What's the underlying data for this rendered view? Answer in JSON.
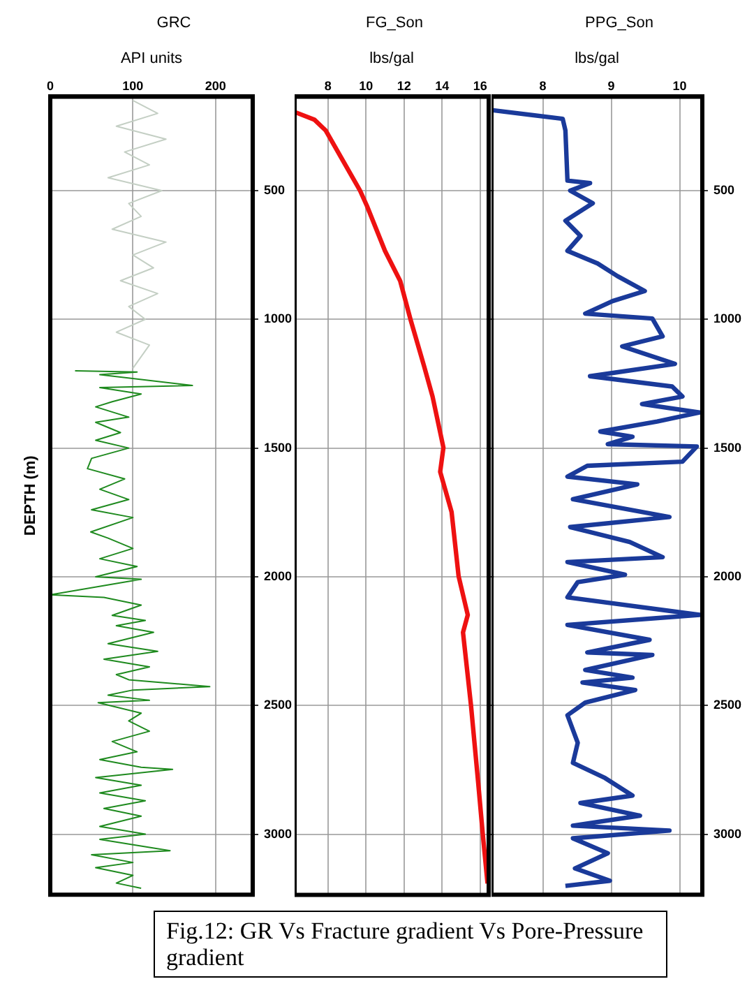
{
  "chart_data": [
    {
      "type": "line",
      "title": "GRC",
      "xlabel": "API units",
      "ylabel": "DEPTH (m)",
      "xlim": [
        0,
        245
      ],
      "xticks": [
        0,
        100,
        200
      ],
      "ylim": [
        3235,
        135
      ],
      "yticks": [
        500,
        1000,
        1500,
        2000,
        2500,
        3000
      ],
      "grid": true,
      "line_style": "solid",
      "series": [
        {
          "color": "#c4cfc4",
          "x": [
            100,
            130,
            80,
            140,
            90,
            120,
            70,
            135,
            95,
            110,
            75,
            140,
            100,
            125,
            85,
            130,
            95,
            115,
            80,
            120,
            100
          ],
          "values": [
            150,
            200,
            250,
            300,
            350,
            400,
            450,
            500,
            550,
            600,
            650,
            700,
            750,
            800,
            850,
            900,
            950,
            1000,
            1050,
            1100,
            1190
          ]
        },
        {
          "color": "#1e8a1e",
          "x": [
            30,
            105,
            60,
            172,
            60,
            110,
            75,
            55,
            95,
            55,
            85,
            55,
            95,
            50,
            45,
            90,
            60,
            95,
            50,
            100,
            49,
            70,
            100,
            60,
            105,
            55,
            110,
            0,
            65,
            110,
            75,
            115,
            80,
            125,
            70,
            130,
            65,
            120,
            80,
            95,
            193,
            100,
            70,
            120,
            58,
            110,
            95,
            120,
            75,
            105,
            60,
            110,
            148,
            55,
            110,
            60,
            115,
            65,
            110,
            60,
            115,
            60,
            145,
            50,
            100,
            55,
            100,
            80,
            110
          ],
          "values": [
            1200,
            1205,
            1215,
            1257,
            1265,
            1290,
            1320,
            1340,
            1380,
            1400,
            1440,
            1470,
            1500,
            1540,
            1580,
            1620,
            1660,
            1700,
            1740,
            1770,
            1826,
            1850,
            1890,
            1930,
            1960,
            2000,
            2010,
            2070,
            2080,
            2110,
            2150,
            2170,
            2190,
            2216,
            2260,
            2290,
            2320,
            2350,
            2380,
            2400,
            2427,
            2440,
            2460,
            2480,
            2489,
            2530,
            2560,
            2600,
            2640,
            2680,
            2710,
            2740,
            2748,
            2780,
            2810,
            2840,
            2870,
            2900,
            2930,
            2970,
            3000,
            3020,
            3064,
            3080,
            3110,
            3130,
            3160,
            3190,
            3210
          ]
        }
      ],
      "annotations": [
        "Fig.12: GR Vs Fracture gradient Vs Pore-Pressure gradient"
      ]
    },
    {
      "type": "line",
      "title": "FG_Son",
      "xlabel": "lbs/gal",
      "xlim": [
        6.25,
        16.45
      ],
      "xticks": [
        8,
        10,
        12,
        14,
        16
      ],
      "ylim": [
        3235,
        135
      ],
      "yticks": [
        500,
        1000,
        1500,
        2000,
        2500,
        3000
      ],
      "grid": true,
      "tick_labels": "x",
      "line_style": "solid",
      "series": [
        {
          "color": "#ee1111",
          "x": [
            6.3,
            7.3,
            7.88,
            9.69,
            10.05,
            11.0,
            11.8,
            12.34,
            13.06,
            13.5,
            14.07,
            13.9,
            14.5,
            14.87,
            15.35,
            15.1,
            15.52,
            15.9,
            16.14,
            16.39
          ],
          "values": [
            196,
            225,
            266,
            500,
            559,
            734,
            851,
            1000,
            1183,
            1300,
            1498,
            1592,
            1748,
            1998,
            2148,
            2216,
            2499,
            2801,
            3000,
            3191
          ]
        }
      ]
    },
    {
      "type": "line",
      "title": "PPG_Son",
      "xlabel": "lbs/gal",
      "xlim": [
        7.25,
        10.33
      ],
      "xticks": [
        8,
        9,
        10
      ],
      "ylim": [
        3235,
        135
      ],
      "yticks": [
        500,
        1000,
        1500,
        2000,
        2500,
        3000
      ],
      "grid": true,
      "line_style": "solid",
      "series": [
        {
          "color": "#1a3a9a",
          "x": [
            7.27,
            8.29,
            8.33,
            8.36,
            8.69,
            8.4,
            8.73,
            8.33,
            8.55,
            8.36,
            8.8,
            9.09,
            9.49,
            9.02,
            8.62,
            9.6,
            9.75,
            9.16,
            9.93,
            8.69,
            9.89,
            10.04,
            9.45,
            10.29,
            9.67,
            8.84,
            9.31,
            8.95,
            10.25,
            10.04,
            8.65,
            8.36,
            9.38,
            8.44,
            9.85,
            8.4,
            9.27,
            9.75,
            8.36,
            9.2,
            8.51,
            8.36,
            10.29,
            8.36,
            9.56,
            8.65,
            9.6,
            8.62,
            9.31,
            8.58,
            9.35,
            8.62,
            8.36,
            8.51,
            8.44,
            8.91,
            9.31,
            8.55,
            9.42,
            8.44,
            9.85,
            8.44,
            8.95,
            8.47,
            8.98,
            8.33
          ],
          "values": [
            188,
            221,
            266,
            461,
            471,
            500,
            549,
            617,
            676,
            734,
            783,
            832,
            890,
            929,
            978,
            997,
            1066,
            1105,
            1173,
            1221,
            1261,
            1300,
            1329,
            1362,
            1397,
            1436,
            1456,
            1485,
            1494,
            1553,
            1569,
            1611,
            1641,
            1699,
            1768,
            1807,
            1865,
            1924,
            1943,
            1992,
            2021,
            2080,
            2148,
            2187,
            2245,
            2294,
            2304,
            2362,
            2392,
            2411,
            2440,
            2489,
            2538,
            2645,
            2723,
            2782,
            2850,
            2879,
            2928,
            2967,
            2986,
            3016,
            3074,
            3133,
            3181,
            3201
          ]
        }
      ]
    }
  ]
}
